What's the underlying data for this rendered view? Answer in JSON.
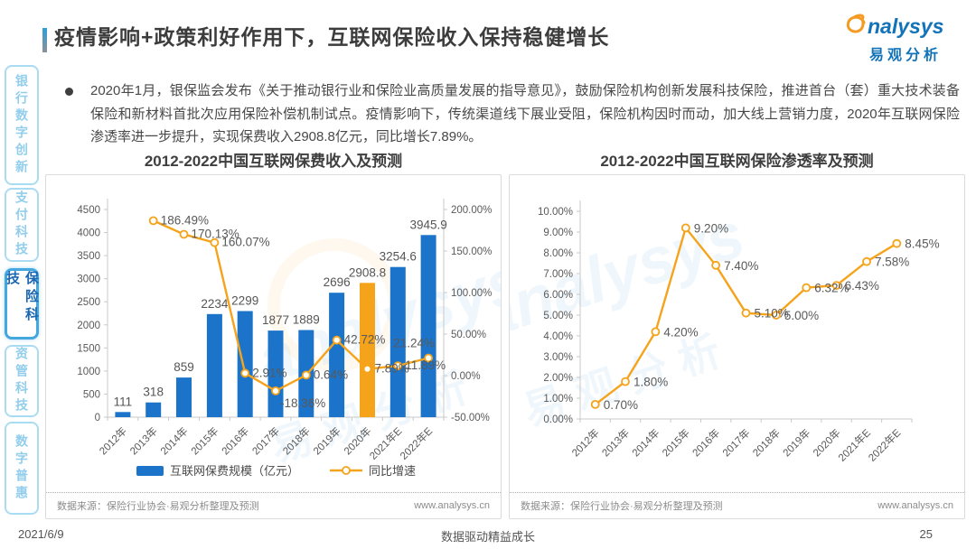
{
  "header": {
    "title": "疫情影响+政策利好作用下，互联网保险收入保持稳健增长",
    "logo": {
      "brand": "analysys",
      "brand_cn": "易观分析"
    }
  },
  "bullet_paragraph": "2020年1月，银保监会发布《关于推动银行业和保险业高质量发展的指导意见》，鼓励保险机构创新发展科技保险，推进首台（套）重大技术装备保险和新材料首批次应用保险补偿机制试点。疫情影响下，传统渠道线下展业受阻，保险机构因时而动，加大线上营销力度，2020年互联网保险渗透率进一步提升，实现保费收入2908.8亿元，同比增长7.89%。",
  "sidebar": {
    "items": [
      {
        "label": "银行数字创新",
        "active": false
      },
      {
        "label": "支付科技",
        "active": false
      },
      {
        "label": "保险科技",
        "active": true
      },
      {
        "label": "资管科技",
        "active": false
      },
      {
        "label": "数字普惠",
        "active": false
      }
    ]
  },
  "chart_data": [
    {
      "type": "bar",
      "title": "2012-2022中国互联网保费收入及预测",
      "categories": [
        "2012年",
        "2013年",
        "2014年",
        "2015年",
        "2016年",
        "2017年",
        "2018年",
        "2019年",
        "2020年",
        "2021年E",
        "2022年E"
      ],
      "series": [
        {
          "name": "互联网保费规模（亿元）",
          "type": "bar",
          "values": [
            111,
            318,
            859,
            2234,
            2299,
            1877,
            1889,
            2696,
            2908.8,
            3254.6,
            3945.9
          ],
          "labels": [
            "111",
            "318",
            "859",
            "2234",
            "2299",
            "1877",
            "1889",
            "2696",
            "2908.8",
            "3254.6",
            "3945.9"
          ],
          "color": "#1B74C9",
          "highlight_index": 8,
          "highlight_color": "#F5A31B"
        },
        {
          "name": "同比增速",
          "type": "line",
          "values": [
            null,
            186.49,
            170.13,
            160.07,
            2.91,
            -18.36,
            0.64,
            42.72,
            7.89,
            11.89,
            21.24
          ],
          "labels": [
            null,
            "186.49%",
            "170.13%",
            "160.07%",
            "2.91%",
            "-18.36%",
            "0.64%",
            "42.72%",
            "7.89%",
            "11.89%",
            "21.24%"
          ],
          "color": "#F5A31B"
        }
      ],
      "y_left": {
        "min": 0,
        "max": 4500,
        "step": 500
      },
      "y_right": {
        "min": -50,
        "max": 200,
        "step": 50,
        "suffix": "%"
      },
      "legend_position": "bottom",
      "source": "数据来源：保险行业协会·易观分析整理及预测",
      "website": "www.analysys.cn"
    },
    {
      "type": "line",
      "title": "2012-2022中国互联网保险渗透率及预测",
      "categories": [
        "2012年",
        "2013年",
        "2014年",
        "2015年",
        "2016年",
        "2017年",
        "2018年",
        "2019年",
        "2020年",
        "2021年E",
        "2022年E"
      ],
      "series": [
        {
          "name": "互联网保险渗透率",
          "type": "line",
          "values": [
            0.7,
            1.8,
            4.2,
            9.2,
            7.4,
            5.1,
            5.0,
            6.32,
            6.43,
            7.58,
            8.45
          ],
          "labels": [
            "0.70%",
            "1.80%",
            "4.20%",
            "9.20%",
            "7.40%",
            "5.10%",
            "5.00%",
            "6.32%",
            "6.43%",
            "7.58%",
            "8.45%"
          ],
          "color": "#F5A31B"
        }
      ],
      "y_left": {
        "min": 0,
        "max": 10,
        "step": 1,
        "suffix": "%"
      },
      "source": "数据来源：保险行业协会·易观分析整理及预测",
      "website": "www.analysys.cn"
    }
  ],
  "watermark": {
    "brand": "analysys",
    "brand_cn": "易观分析"
  },
  "footer": {
    "date": "2021/6/9",
    "slogan": "数据驱动精益成长",
    "page": "25"
  }
}
